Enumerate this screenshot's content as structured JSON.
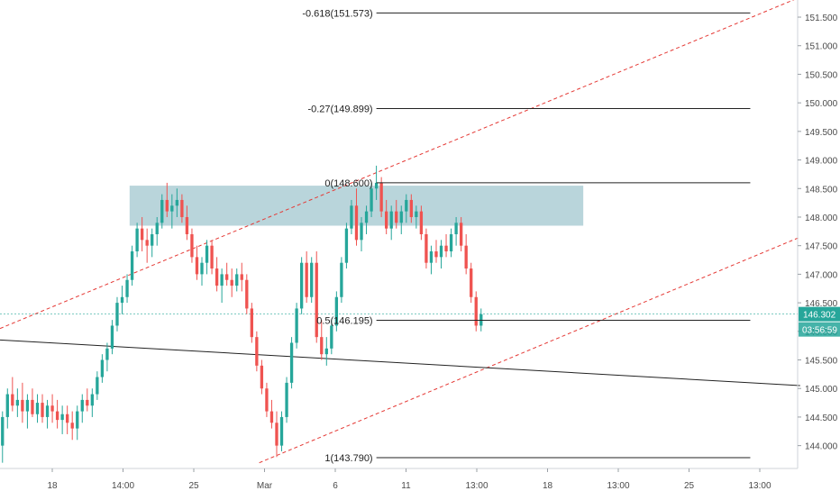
{
  "chart_data": {
    "type": "candlestick",
    "title": "",
    "xlabel": "",
    "ylabel": "",
    "grid": false,
    "ylim": [
      143.6,
      151.8
    ],
    "y_ticks": [
      "151.500",
      "151.000",
      "150.500",
      "150.000",
      "149.500",
      "149.000",
      "148.500",
      "148.000",
      "147.500",
      "147.000",
      "146.500",
      "146.000",
      "145.500",
      "145.000",
      "144.500",
      "144.000"
    ],
    "x_ticks": [
      "18",
      "14:00",
      "25",
      "Mar",
      "6",
      "11",
      "13:00",
      "18",
      "13:00",
      "25",
      "13:00"
    ],
    "bar_slots": 160,
    "fib_levels": [
      {
        "label": "-0.618(151.573)",
        "value": 151.573,
        "from": 75,
        "to": 150
      },
      {
        "label": "-0.27(149.899)",
        "value": 149.899,
        "from": 75,
        "to": 150
      },
      {
        "label": "0(148.600)",
        "value": 148.6,
        "from": 75,
        "to": 150
      },
      {
        "label": "0.5(146.195)",
        "value": 146.195,
        "from": 75,
        "to": 150
      },
      {
        "label": "1(143.790)",
        "value": 143.79,
        "from": 75,
        "to": 150
      }
    ],
    "resistance_zone": {
      "from": 26,
      "to": 116,
      "low": 147.85,
      "high": 148.55
    },
    "channel_lines": [
      {
        "x1": 0,
        "y1": 146.05,
        "x2": 160,
        "y2": 151.85,
        "style": "dashed",
        "color": "#e53935"
      },
      {
        "x1": 52,
        "y1": 143.7,
        "x2": 160,
        "y2": 147.65,
        "style": "dashed",
        "color": "#e53935"
      },
      {
        "x1": 0,
        "y1": 145.85,
        "x2": 160,
        "y2": 145.05,
        "style": "solid",
        "color": "#222222"
      }
    ],
    "current_price": {
      "value": 146.302,
      "label": "146.302",
      "countdown": "03:56:59"
    },
    "ohlc": [
      [
        144.0,
        144.6,
        143.7,
        144.5
      ],
      [
        144.5,
        145.0,
        144.3,
        144.9
      ],
      [
        144.9,
        145.2,
        144.6,
        144.7
      ],
      [
        144.7,
        145.0,
        144.5,
        144.8
      ],
      [
        144.8,
        145.1,
        144.4,
        144.6
      ],
      [
        144.6,
        144.9,
        144.3,
        144.8
      ],
      [
        144.8,
        145.0,
        144.5,
        144.55
      ],
      [
        144.55,
        144.9,
        144.4,
        144.75
      ],
      [
        144.75,
        144.9,
        144.4,
        144.5
      ],
      [
        144.5,
        144.8,
        144.3,
        144.7
      ],
      [
        144.7,
        144.9,
        144.4,
        144.6
      ],
      [
        144.6,
        144.8,
        144.3,
        144.45
      ],
      [
        144.45,
        144.7,
        144.2,
        144.55
      ],
      [
        144.55,
        144.7,
        144.2,
        144.4
      ],
      [
        144.4,
        144.6,
        144.1,
        144.3
      ],
      [
        144.3,
        144.7,
        144.1,
        144.6
      ],
      [
        144.6,
        144.9,
        144.4,
        144.8
      ],
      [
        144.8,
        145.0,
        144.6,
        144.7
      ],
      [
        144.7,
        145.0,
        144.5,
        144.9
      ],
      [
        144.9,
        145.3,
        144.8,
        145.2
      ],
      [
        145.2,
        145.6,
        145.1,
        145.5
      ],
      [
        145.5,
        145.8,
        145.3,
        145.7
      ],
      [
        145.7,
        146.2,
        145.6,
        146.1
      ],
      [
        146.1,
        146.6,
        146.0,
        146.5
      ],
      [
        146.5,
        146.8,
        146.3,
        146.6
      ],
      [
        146.6,
        147.0,
        146.5,
        146.9
      ],
      [
        146.9,
        147.5,
        146.8,
        147.4
      ],
      [
        147.4,
        147.9,
        147.3,
        147.8
      ],
      [
        147.8,
        148.0,
        147.4,
        147.6
      ],
      [
        147.6,
        147.8,
        147.2,
        147.5
      ],
      [
        147.5,
        147.8,
        147.3,
        147.7
      ],
      [
        147.7,
        148.0,
        147.5,
        147.9
      ],
      [
        147.9,
        148.4,
        147.8,
        148.3
      ],
      [
        148.3,
        148.6,
        148.0,
        148.1
      ],
      [
        148.1,
        148.4,
        147.8,
        148.2
      ],
      [
        148.2,
        148.5,
        148.0,
        148.3
      ],
      [
        148.3,
        148.4,
        147.9,
        148.0
      ],
      [
        148.0,
        148.2,
        147.6,
        147.7
      ],
      [
        147.7,
        147.8,
        147.2,
        147.3
      ],
      [
        147.3,
        147.5,
        146.9,
        147.0
      ],
      [
        147.0,
        147.3,
        146.8,
        147.2
      ],
      [
        147.2,
        147.6,
        147.0,
        147.5
      ],
      [
        147.5,
        147.6,
        147.0,
        147.1
      ],
      [
        147.1,
        147.3,
        146.7,
        146.8
      ],
      [
        146.8,
        147.1,
        146.5,
        147.0
      ],
      [
        147.0,
        147.2,
        146.8,
        146.9
      ],
      [
        146.9,
        147.1,
        146.6,
        146.8
      ],
      [
        146.8,
        147.1,
        146.7,
        147.0
      ],
      [
        147.0,
        147.2,
        146.7,
        146.9
      ],
      [
        146.9,
        147.0,
        146.3,
        146.4
      ],
      [
        146.4,
        146.5,
        145.8,
        145.9
      ],
      [
        145.9,
        146.0,
        145.3,
        145.4
      ],
      [
        145.4,
        145.5,
        144.9,
        145.0
      ],
      [
        145.0,
        145.1,
        144.5,
        144.6
      ],
      [
        144.6,
        144.8,
        144.3,
        144.4
      ],
      [
        144.4,
        144.6,
        143.8,
        144.0
      ],
      [
        144.0,
        144.6,
        143.9,
        144.5
      ],
      [
        144.5,
        145.2,
        144.4,
        145.1
      ],
      [
        145.1,
        145.9,
        145.0,
        145.8
      ],
      [
        145.8,
        146.5,
        145.7,
        146.4
      ],
      [
        146.4,
        147.3,
        146.3,
        147.2
      ],
      [
        147.2,
        147.4,
        146.5,
        146.6
      ],
      [
        146.6,
        147.3,
        146.5,
        147.2
      ],
      [
        147.2,
        147.4,
        145.8,
        145.9
      ],
      [
        145.9,
        146.2,
        145.5,
        145.6
      ],
      [
        145.6,
        145.9,
        145.4,
        145.7
      ],
      [
        145.7,
        146.2,
        145.6,
        146.1
      ],
      [
        146.1,
        146.7,
        146.0,
        146.6
      ],
      [
        146.6,
        147.3,
        146.5,
        147.2
      ],
      [
        147.2,
        147.9,
        147.1,
        147.8
      ],
      [
        147.8,
        148.3,
        147.7,
        148.2
      ],
      [
        148.2,
        148.5,
        147.5,
        147.6
      ],
      [
        147.6,
        148.0,
        147.4,
        147.9
      ],
      [
        147.9,
        148.2,
        147.7,
        148.1
      ],
      [
        148.1,
        148.6,
        148.0,
        148.5
      ],
      [
        148.5,
        148.9,
        148.3,
        148.6
      ],
      [
        148.6,
        148.7,
        148.0,
        148.1
      ],
      [
        148.1,
        148.3,
        147.7,
        147.8
      ],
      [
        147.8,
        148.2,
        147.6,
        148.1
      ],
      [
        148.1,
        148.3,
        147.8,
        147.9
      ],
      [
        147.9,
        148.2,
        147.7,
        148.1
      ],
      [
        148.1,
        148.4,
        147.9,
        148.3
      ],
      [
        148.3,
        148.4,
        147.9,
        148.0
      ],
      [
        148.0,
        148.2,
        147.8,
        148.1
      ],
      [
        148.1,
        148.2,
        147.6,
        147.7
      ],
      [
        147.7,
        147.8,
        147.1,
        147.2
      ],
      [
        147.2,
        147.5,
        147.0,
        147.4
      ],
      [
        147.4,
        147.6,
        147.2,
        147.3
      ],
      [
        147.3,
        147.6,
        147.1,
        147.5
      ],
      [
        147.5,
        147.7,
        147.3,
        147.4
      ],
      [
        147.4,
        147.8,
        147.3,
        147.7
      ],
      [
        147.7,
        148.0,
        147.5,
        147.9
      ],
      [
        147.9,
        148.0,
        147.4,
        147.5
      ],
      [
        147.5,
        147.7,
        147.0,
        147.1
      ],
      [
        147.1,
        147.2,
        146.5,
        146.6
      ],
      [
        146.6,
        146.7,
        146.0,
        146.1
      ],
      [
        146.1,
        146.4,
        146.0,
        146.3
      ]
    ]
  }
}
